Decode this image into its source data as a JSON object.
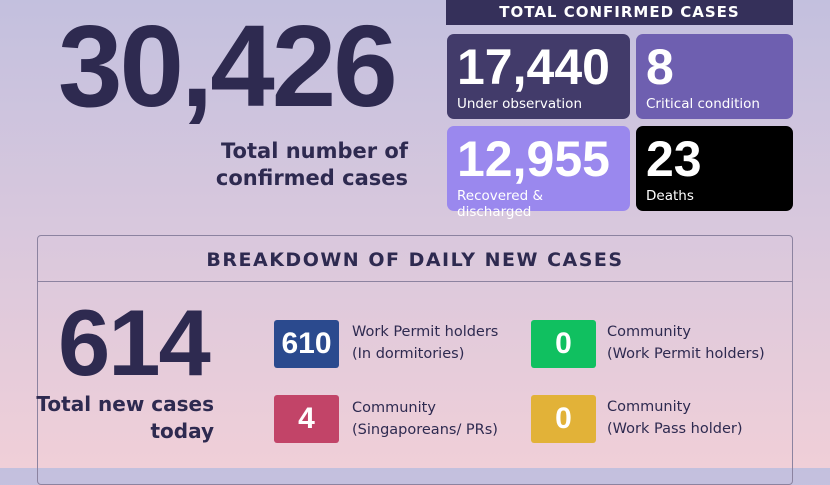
{
  "total": {
    "value": "30,426",
    "label": "Total number of confirmed cases"
  },
  "confirmed": {
    "header": "TOTAL CONFIRMED CASES",
    "items": [
      {
        "value": "17,440",
        "label": "Under observation",
        "color": "#423b6a"
      },
      {
        "value": "8",
        "label": "Critical condition",
        "color": "#6e5fb0"
      },
      {
        "value": "12,955",
        "label": "Recovered & discharged",
        "color": "#9a88ee"
      },
      {
        "value": "23",
        "label": "Deaths",
        "color": "#000000"
      }
    ]
  },
  "breakdown": {
    "title": "BREAKDOWN OF DAILY NEW CASES",
    "today": {
      "value": "614",
      "label": "Total new cases today"
    },
    "items": [
      {
        "value": "610",
        "line1": "Work Permit holders",
        "line2": "(In dormitories)",
        "color": "#2b4a8e"
      },
      {
        "value": "0",
        "line1": "Community",
        "line2": "(Work Permit holders)",
        "color": "#10c060"
      },
      {
        "value": "4",
        "line1": "Community",
        "line2": "(Singaporeans/ PRs)",
        "color": "#c24468"
      },
      {
        "value": "0",
        "line1": "Community",
        "line2": "(Work Pass holder)",
        "color": "#e2b238"
      }
    ]
  }
}
